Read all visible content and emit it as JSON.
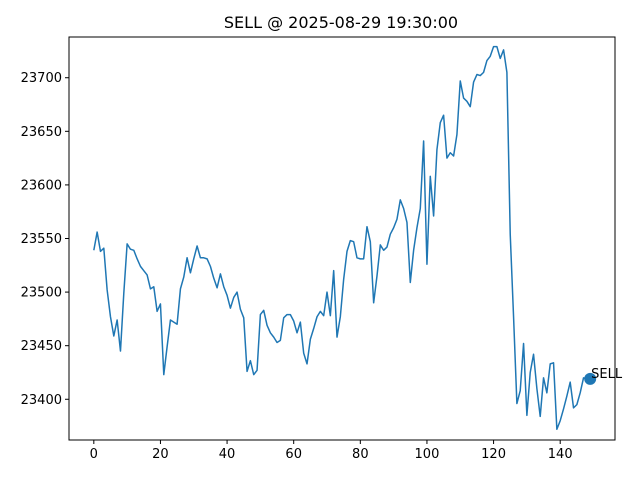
{
  "chart_data": {
    "type": "line",
    "title": "SELL @ 2025-08-29 19:30:00",
    "xlabel": "",
    "ylabel": "",
    "xlim": [
      -7.45,
      156.45
    ],
    "ylim": [
      23362,
      23738
    ],
    "xticks": [
      0,
      20,
      40,
      60,
      80,
      100,
      120,
      140
    ],
    "yticks": [
      23400,
      23450,
      23500,
      23550,
      23600,
      23650,
      23700
    ],
    "grid": false,
    "colors": {
      "line": "#1f77b4",
      "marker": "#1f77b4"
    },
    "series": [
      {
        "x": [
          0,
          1,
          2,
          3,
          4,
          5,
          6,
          7,
          8,
          9,
          10,
          11,
          12,
          13,
          14,
          15,
          16,
          17,
          18,
          19,
          20,
          21,
          22,
          23,
          24,
          25,
          26,
          27,
          28,
          29,
          30,
          31,
          32,
          33,
          34,
          35,
          36,
          37,
          38,
          39,
          40,
          41,
          42,
          43,
          44,
          45,
          46,
          47,
          48,
          49,
          50,
          51,
          52,
          53,
          54,
          55,
          56,
          57,
          58,
          59,
          60,
          61,
          62,
          63,
          64,
          65,
          66,
          67,
          68,
          69,
          70,
          71,
          72,
          73,
          74,
          75,
          76,
          77,
          78,
          79,
          80,
          81,
          82,
          83,
          84,
          85,
          86,
          87,
          88,
          89,
          90,
          91,
          92,
          93,
          94,
          95,
          96,
          97,
          98,
          99,
          100,
          101,
          102,
          103,
          104,
          105,
          106,
          107,
          108,
          109,
          110,
          111,
          112,
          113,
          114,
          115,
          116,
          117,
          118,
          119,
          120,
          121,
          122,
          123,
          124,
          125,
          126,
          127,
          128,
          129,
          130,
          131,
          132,
          133,
          134,
          135,
          136,
          137,
          138,
          139,
          140,
          141,
          142,
          143,
          144,
          145,
          146,
          147,
          148,
          149
        ],
        "values": [
          23539,
          23556,
          23538,
          23541,
          23502,
          23477,
          23459,
          23474,
          23445,
          23499,
          23545,
          23540,
          23539,
          23531,
          23524,
          23520,
          23516,
          23503,
          23505,
          23482,
          23489,
          23423,
          23449,
          23474,
          23472,
          23470,
          23503,
          23514,
          23532,
          23518,
          23531,
          23543,
          23532,
          23532,
          23531,
          23524,
          23513,
          23504,
          23517,
          23505,
          23497,
          23485,
          23495,
          23500,
          23484,
          23476,
          23426,
          23436,
          23423,
          23427,
          23479,
          23483,
          23469,
          23462,
          23458,
          23453,
          23455,
          23476,
          23479,
          23479,
          23473,
          23462,
          23472,
          23443,
          23433,
          23456,
          23466,
          23477,
          23482,
          23478,
          23500,
          23478,
          23520,
          23458,
          23477,
          23512,
          23538,
          23548,
          23547,
          23532,
          23531,
          23531,
          23561,
          23547,
          23490,
          23515,
          23544,
          23539,
          23542,
          23554,
          23560,
          23568,
          23586,
          23578,
          23565,
          23509,
          23539,
          23560,
          23578,
          23641,
          23526,
          23608,
          23571,
          23633,
          23658,
          23665,
          23625,
          23630,
          23627,
          23647,
          23697,
          23681,
          23678,
          23673,
          23696,
          23703,
          23702,
          23705,
          23716,
          23720,
          23729,
          23729,
          23718,
          23726,
          23705,
          23554,
          23477,
          23396,
          23408,
          23452,
          23385,
          23425,
          23442,
          23410,
          23384,
          23420,
          23406,
          23433,
          23434,
          23372,
          23380,
          23391,
          23403,
          23416,
          23392,
          23395,
          23406,
          23420,
          23419,
          23419
        ]
      }
    ],
    "annotations": [
      {
        "text": "SELL",
        "x": 149,
        "y": 23419
      }
    ]
  }
}
